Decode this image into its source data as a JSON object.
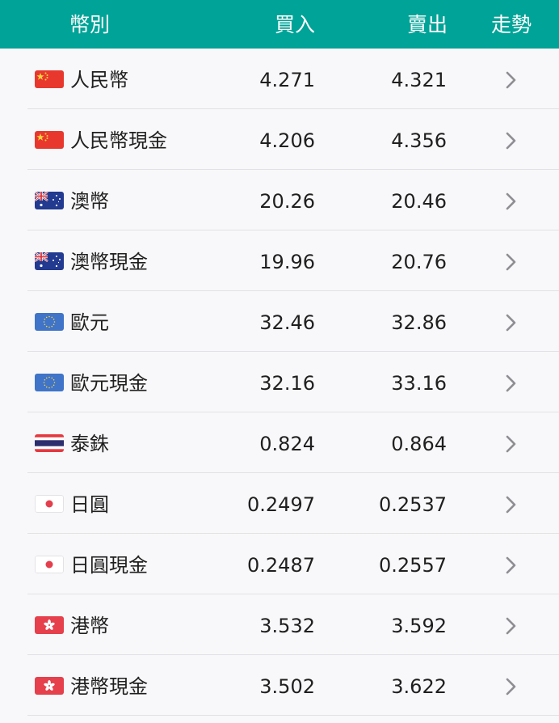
{
  "header": {
    "currency": "幣別",
    "buy": "買入",
    "sell": "賣出",
    "trend": "走勢"
  },
  "icons": {
    "cn": "china-flag-icon",
    "au": "australia-flag-icon",
    "eu": "eu-flag-icon",
    "th": "thailand-flag-icon",
    "jp": "japan-flag-icon",
    "hk": "hong-kong-flag-icon",
    "chevron": "chevron-right-icon"
  },
  "colors": {
    "header_bg": "#00a397",
    "chevron": "#8e8e93"
  },
  "rows": [
    {
      "flag": "cn",
      "name": "人民幣",
      "buy": "4.271",
      "sell": "4.321"
    },
    {
      "flag": "cn",
      "name": "人民幣現金",
      "buy": "4.206",
      "sell": "4.356"
    },
    {
      "flag": "au",
      "name": "澳幣",
      "buy": "20.26",
      "sell": "20.46"
    },
    {
      "flag": "au",
      "name": "澳幣現金",
      "buy": "19.96",
      "sell": "20.76"
    },
    {
      "flag": "eu",
      "name": "歐元",
      "buy": "32.46",
      "sell": "32.86"
    },
    {
      "flag": "eu",
      "name": "歐元現金",
      "buy": "32.16",
      "sell": "33.16"
    },
    {
      "flag": "th",
      "name": "泰銖",
      "buy": "0.824",
      "sell": "0.864"
    },
    {
      "flag": "jp",
      "name": "日圓",
      "buy": "0.2497",
      "sell": "0.2537"
    },
    {
      "flag": "jp",
      "name": "日圓現金",
      "buy": "0.2487",
      "sell": "0.2557"
    },
    {
      "flag": "hk",
      "name": "港幣",
      "buy": "3.532",
      "sell": "3.592"
    },
    {
      "flag": "hk",
      "name": "港幣現金",
      "buy": "3.502",
      "sell": "3.622"
    }
  ]
}
